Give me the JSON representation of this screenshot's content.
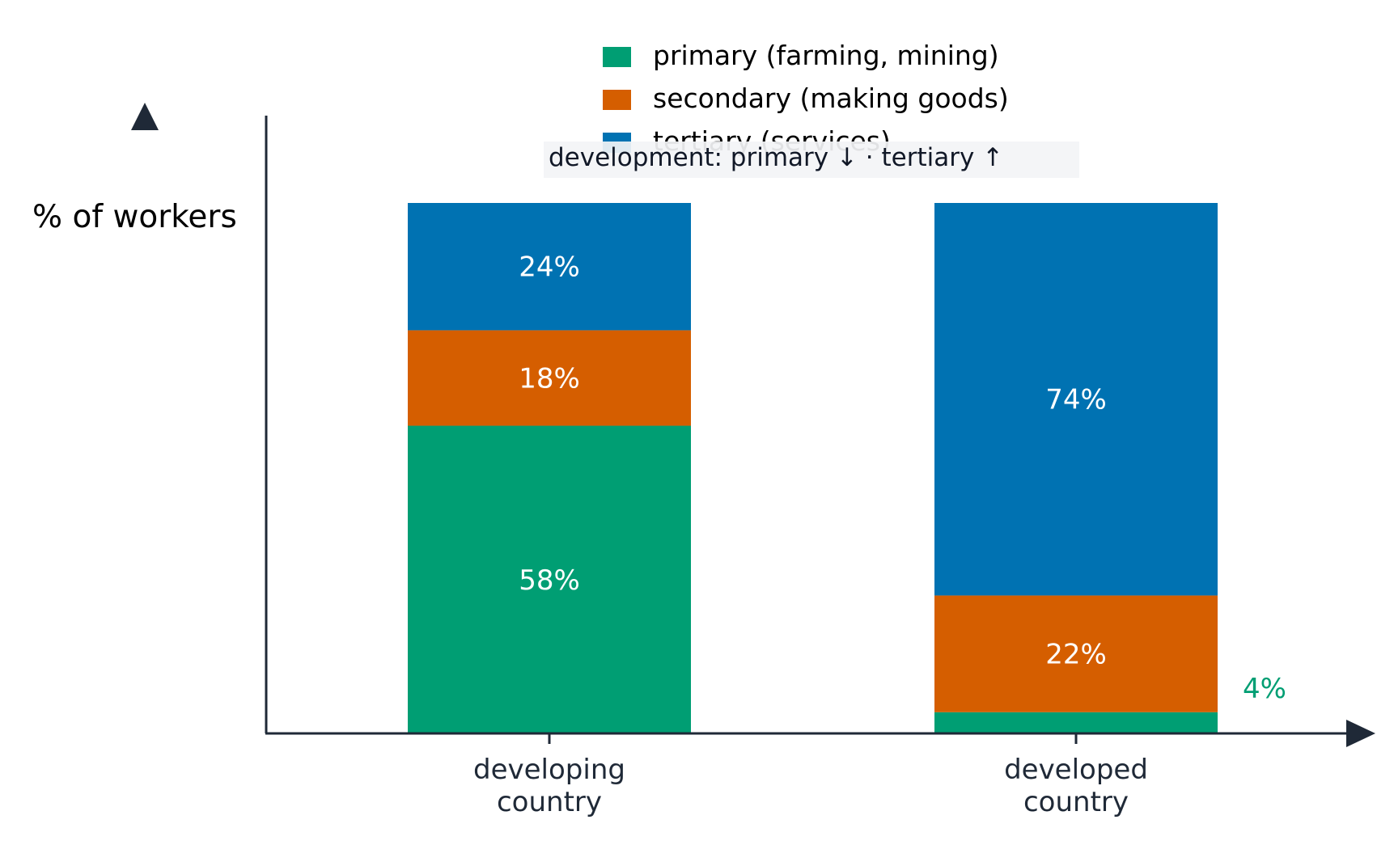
{
  "chart_data": {
    "type": "bar",
    "stacked": true,
    "ylabel": "% of workers",
    "categories": [
      [
        "developing",
        "country"
      ],
      [
        "developed",
        "country"
      ]
    ],
    "series": [
      {
        "name": "primary (farming, mining)",
        "color": "#009e73",
        "values": [
          58,
          4
        ],
        "labels": [
          "58%",
          "4%"
        ]
      },
      {
        "name": "secondary (making goods)",
        "color": "#d55e00",
        "values": [
          18,
          22
        ],
        "labels": [
          "18%",
          "22%"
        ]
      },
      {
        "name": "tertiary (services)",
        "color": "#0072b2",
        "values": [
          24,
          74
        ],
        "labels": [
          "24%",
          "74%"
        ]
      }
    ],
    "ylim": [
      0,
      100
    ],
    "grid": false,
    "legend": "top-center",
    "annotation": "development: primary ↓  ·  tertiary ↑",
    "axis_color": "#1f2937"
  }
}
